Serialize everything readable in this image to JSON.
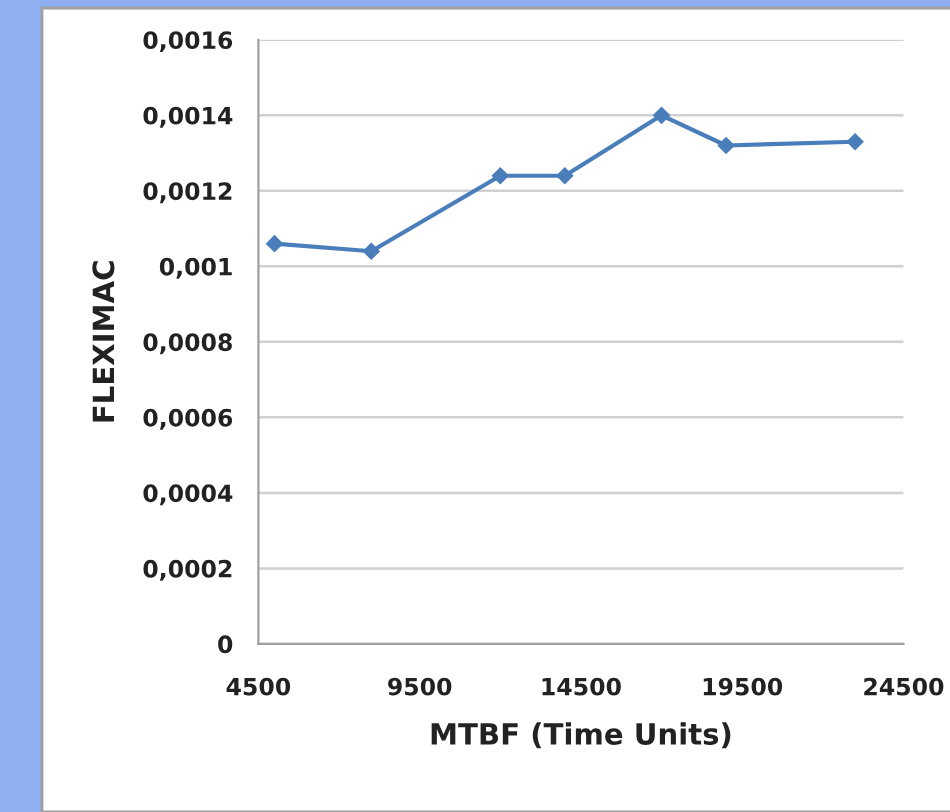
{
  "chart_data": {
    "type": "line",
    "xlabel": "MTBF (Time Units)",
    "ylabel": "FLEXIMAC",
    "x": [
      5000,
      8000,
      12000,
      14000,
      17000,
      19000,
      23000
    ],
    "series": [
      {
        "color": "#4a7ebb",
        "values": [
          0.00106,
          0.00104,
          0.00124,
          0.00124,
          0.0014,
          0.00132,
          0.00133
        ]
      }
    ],
    "xlim": [
      4500,
      24500
    ],
    "xticks": [
      4500,
      9500,
      14500,
      19500,
      24500
    ],
    "ylim": [
      0,
      0.0016
    ],
    "yticks": [
      {
        "value": 0,
        "label": "0"
      },
      {
        "value": 0.0002,
        "label": "0,0002"
      },
      {
        "value": 0.0004,
        "label": "0,0004"
      },
      {
        "value": 0.0006,
        "label": "0,0006"
      },
      {
        "value": 0.0008,
        "label": "0,0008"
      },
      {
        "value": 0.001,
        "label": "0,001"
      },
      {
        "value": 0.0012,
        "label": "0,0012"
      },
      {
        "value": 0.0014,
        "label": "0,0014"
      },
      {
        "value": 0.0016,
        "label": "0,0016"
      }
    ],
    "grid": "y",
    "marker": "diamond",
    "line_style": "solid",
    "legend": false
  }
}
